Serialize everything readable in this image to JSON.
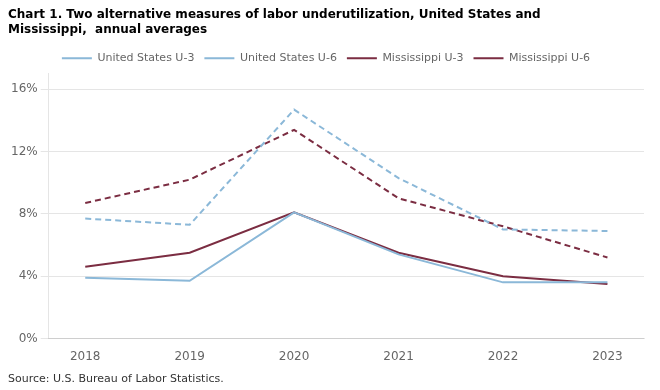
{
  "chart_data": {
    "type": "line",
    "title": [
      "Chart 1. Two alternative measures of labor underutilization, United States and",
      "Mississippi,  annual averages"
    ],
    "annotations": [
      "Source: U.S. Bureau of Labor Statistics."
    ],
    "x": [
      2018,
      2019,
      2020,
      2021,
      2022,
      2023
    ],
    "series": [
      {
        "name": "United States U-3",
        "color": "#8BB8D8",
        "line_style": "solid",
        "values": [
          3.9,
          3.7,
          8.1,
          5.4,
          3.6,
          3.6
        ]
      },
      {
        "name": "United States U-6",
        "color": "#8BB8D8",
        "line_style": "dashed",
        "values": [
          7.7,
          7.3,
          14.7,
          10.3,
          7.0,
          6.9
        ]
      },
      {
        "name": "Mississippi U-3",
        "color": "#7B2D42",
        "line_style": "solid",
        "values": [
          4.6,
          5.5,
          8.1,
          5.5,
          4.0,
          3.5
        ]
      },
      {
        "name": "Mississippi U-6",
        "color": "#7B2D42",
        "line_style": "dashed",
        "values": [
          8.7,
          10.2,
          13.4,
          9.0,
          7.2,
          5.2
        ]
      }
    ],
    "xlim": [
      2017.65,
      2023.35
    ],
    "xticks": [
      2018,
      2019,
      2020,
      2021,
      2022,
      2023
    ],
    "ylim": [
      0,
      17
    ],
    "yticks": [
      {
        "value": 0,
        "label": "0%"
      },
      {
        "value": 4,
        "label": "4%"
      },
      {
        "value": 8,
        "label": "8%"
      },
      {
        "value": 12,
        "label": "12%"
      },
      {
        "value": 16,
        "label": "16%"
      }
    ],
    "grid": "y",
    "legend": "top"
  }
}
